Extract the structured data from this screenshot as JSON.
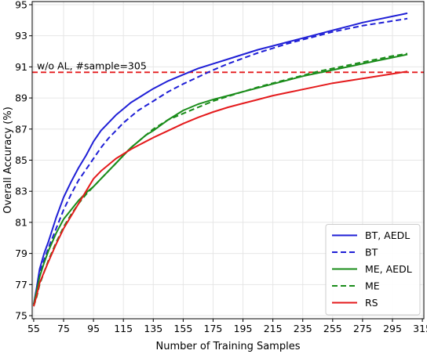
{
  "chart_data": {
    "type": "line",
    "title": "",
    "xlabel": "Number of Training Samples",
    "ylabel": "Overall Accuracy (%)",
    "xlim": [
      54,
      316
    ],
    "ylim": [
      74.8,
      95.2
    ],
    "xticks": [
      55,
      75,
      95,
      115,
      135,
      155,
      175,
      195,
      215,
      235,
      255,
      275,
      295,
      315
    ],
    "yticks": [
      75,
      77,
      79,
      81,
      83,
      85,
      87,
      89,
      91,
      93,
      95
    ],
    "grid": true,
    "legend_position": "bottom-right",
    "reference_line": {
      "y": 90.65,
      "label": "w/o AL, #sample=305",
      "color": "#e41a1c",
      "style": "dashed"
    },
    "series": [
      {
        "name": "BT, AEDL",
        "color": "#1f1fd6",
        "style": "solid",
        "x": [
          55,
          57,
          59,
          62,
          65,
          70,
          75,
          80,
          85,
          90,
          95,
          100,
          105,
          110,
          115,
          120,
          125,
          130,
          135,
          145,
          155,
          165,
          175,
          185,
          195,
          205,
          215,
          225,
          235,
          245,
          255,
          265,
          275,
          285,
          295,
          305
        ],
        "y": [
          75.7,
          76.8,
          78.0,
          79.0,
          79.8,
          81.3,
          82.6,
          83.6,
          84.5,
          85.3,
          86.2,
          86.9,
          87.4,
          87.9,
          88.3,
          88.7,
          89.0,
          89.3,
          89.6,
          90.1,
          90.5,
          90.9,
          91.2,
          91.5,
          91.8,
          92.1,
          92.35,
          92.6,
          92.85,
          93.1,
          93.35,
          93.6,
          93.85,
          94.05,
          94.25,
          94.45
        ]
      },
      {
        "name": "BT",
        "color": "#1f1fd6",
        "style": "dashed",
        "x": [
          55,
          57,
          59,
          62,
          65,
          70,
          75,
          80,
          85,
          90,
          95,
          100,
          105,
          110,
          115,
          120,
          125,
          130,
          135,
          145,
          155,
          165,
          175,
          185,
          195,
          205,
          215,
          225,
          235,
          245,
          255,
          265,
          275,
          285,
          295,
          305
        ],
        "y": [
          75.7,
          76.7,
          77.7,
          78.6,
          79.4,
          80.6,
          81.8,
          82.8,
          83.7,
          84.4,
          85.1,
          85.8,
          86.4,
          86.9,
          87.4,
          87.8,
          88.2,
          88.5,
          88.8,
          89.4,
          89.9,
          90.35,
          90.8,
          91.2,
          91.55,
          91.9,
          92.2,
          92.5,
          92.75,
          93.0,
          93.25,
          93.45,
          93.65,
          93.8,
          93.95,
          94.1
        ]
      },
      {
        "name": "ME, AEDL",
        "color": "#1a8c1a",
        "style": "solid",
        "x": [
          55,
          57,
          59,
          62,
          65,
          70,
          75,
          80,
          85,
          90,
          95,
          100,
          105,
          110,
          115,
          120,
          125,
          130,
          135,
          145,
          155,
          165,
          175,
          185,
          195,
          205,
          215,
          225,
          235,
          245,
          255,
          265,
          275,
          285,
          295,
          305
        ],
        "y": [
          75.7,
          76.6,
          77.5,
          78.4,
          79.2,
          80.3,
          81.2,
          81.8,
          82.4,
          82.9,
          83.3,
          83.8,
          84.3,
          84.8,
          85.3,
          85.8,
          86.2,
          86.6,
          86.9,
          87.6,
          88.2,
          88.6,
          88.9,
          89.15,
          89.4,
          89.65,
          89.9,
          90.15,
          90.4,
          90.6,
          90.8,
          91.0,
          91.2,
          91.4,
          91.6,
          91.8
        ]
      },
      {
        "name": "ME",
        "color": "#1a8c1a",
        "style": "dashed",
        "x": [
          55,
          57,
          59,
          62,
          65,
          70,
          75,
          80,
          85,
          90,
          95,
          100,
          105,
          110,
          115,
          120,
          125,
          130,
          135,
          145,
          155,
          165,
          175,
          185,
          195,
          205,
          215,
          225,
          235,
          245,
          255,
          265,
          275,
          285,
          295,
          305
        ],
        "y": [
          75.6,
          76.2,
          77.0,
          77.8,
          78.6,
          79.7,
          80.7,
          81.5,
          82.2,
          82.8,
          83.3,
          83.8,
          84.3,
          84.8,
          85.3,
          85.8,
          86.2,
          86.6,
          87.0,
          87.6,
          88.0,
          88.4,
          88.8,
          89.1,
          89.4,
          89.7,
          89.95,
          90.2,
          90.45,
          90.7,
          90.9,
          91.1,
          91.3,
          91.5,
          91.7,
          91.85
        ]
      },
      {
        "name": "RS",
        "color": "#e41a1c",
        "style": "solid",
        "x": [
          55,
          57,
          59,
          62,
          65,
          70,
          75,
          80,
          85,
          90,
          95,
          100,
          105,
          110,
          115,
          120,
          125,
          130,
          135,
          145,
          155,
          165,
          175,
          185,
          195,
          205,
          215,
          225,
          235,
          245,
          255,
          265,
          275,
          285,
          295,
          305
        ],
        "y": [
          75.6,
          76.3,
          77.1,
          77.8,
          78.5,
          79.6,
          80.6,
          81.4,
          82.2,
          83.0,
          83.8,
          84.3,
          84.7,
          85.1,
          85.4,
          85.7,
          85.95,
          86.2,
          86.45,
          86.9,
          87.35,
          87.75,
          88.1,
          88.4,
          88.65,
          88.9,
          89.15,
          89.35,
          89.55,
          89.75,
          89.95,
          90.1,
          90.25,
          90.4,
          90.55,
          90.7
        ]
      }
    ]
  }
}
